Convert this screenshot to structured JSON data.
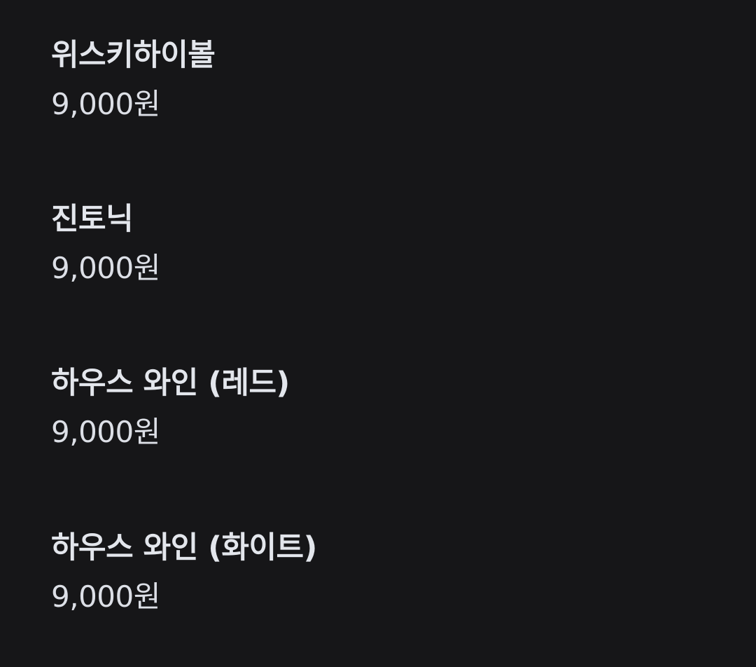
{
  "menu": {
    "items": [
      {
        "name": "위스키하이볼",
        "price": "9,000원"
      },
      {
        "name": "진토닉",
        "price": "9,000원"
      },
      {
        "name": "하우스 와인 (레드)",
        "price": "9,000원"
      },
      {
        "name": "하우스 와인 (화이트)",
        "price": "9,000원"
      }
    ]
  },
  "colors": {
    "background": "#161618",
    "text": "#e3e6ec"
  }
}
